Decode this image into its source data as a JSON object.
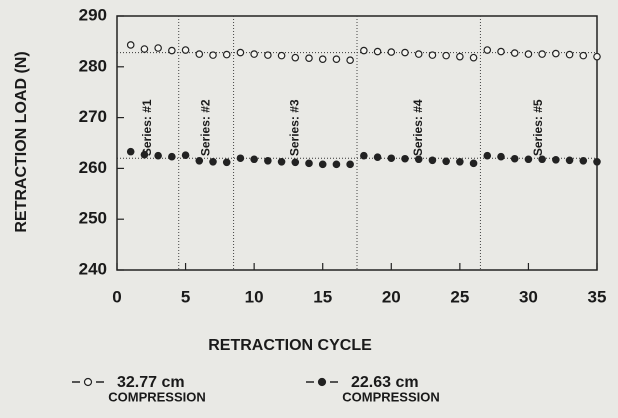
{
  "chart_data": {
    "type": "scatter",
    "x_label": "RETRACTION CYCLE",
    "y_label": "RETRACTION LOAD (N)",
    "x": [
      1,
      2,
      3,
      4,
      5,
      6,
      7,
      8,
      9,
      10,
      11,
      12,
      13,
      14,
      15,
      16,
      17,
      18,
      19,
      20,
      21,
      22,
      23,
      24,
      25,
      26,
      27,
      28,
      29,
      30,
      31,
      32,
      33,
      34,
      35
    ],
    "series": [
      {
        "name": "32.77 cm",
        "note": "COMPRESSION",
        "marker": "open",
        "color": "#222222",
        "values": [
          284.3,
          283.5,
          283.7,
          283.2,
          283.3,
          282.5,
          282.3,
          282.4,
          282.8,
          282.5,
          282.3,
          282.2,
          281.8,
          281.7,
          281.5,
          281.5,
          281.3,
          283.2,
          283.0,
          282.9,
          282.8,
          282.5,
          282.3,
          282.2,
          282.0,
          281.8,
          283.3,
          283.0,
          282.7,
          282.5,
          282.5,
          282.6,
          282.4,
          282.2,
          282.0
        ]
      },
      {
        "name": "22.63 cm",
        "note": "COMPRESSION",
        "marker": "filled",
        "color": "#222222",
        "values": [
          263.3,
          262.7,
          262.5,
          262.3,
          262.6,
          261.5,
          261.3,
          261.2,
          262.0,
          261.8,
          261.5,
          261.3,
          261.2,
          261.0,
          260.8,
          260.8,
          260.8,
          262.5,
          262.2,
          262.0,
          261.9,
          261.8,
          261.6,
          261.4,
          261.3,
          261.0,
          262.5,
          262.3,
          261.9,
          261.8,
          261.8,
          261.7,
          261.6,
          261.5,
          261.3
        ]
      }
    ],
    "dividers": [
      4.5,
      8.5,
      17.5,
      26.5
    ],
    "region_labels": [
      "Series: #1",
      "Series: #2",
      "Series: #3",
      "Series: #4",
      "Series: #5"
    ],
    "reference_lines": [
      282.8,
      262.0
    ],
    "xlim": [
      0,
      35
    ],
    "xticks": [
      0,
      5,
      10,
      15,
      20,
      25,
      30,
      35
    ],
    "ylim": [
      240,
      290
    ],
    "yticks": [
      240,
      250,
      260,
      270,
      280,
      290
    ]
  }
}
